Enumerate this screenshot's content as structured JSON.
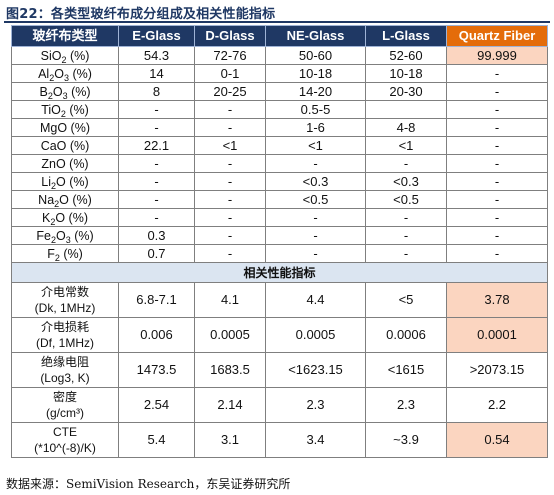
{
  "title": "图22：各类型玻纤布成分组成及相关性能指标",
  "header": [
    "玻纤布类型",
    "E-Glass",
    "D-Glass",
    "NE-Glass",
    "L-Glass",
    "Quartz Fiber"
  ],
  "composition": [
    {
      "label": [
        "SiO",
        "2",
        " (%)"
      ],
      "values": [
        "54.3",
        "72-76",
        "50-60",
        "52-60",
        "99.999"
      ]
    },
    {
      "label": [
        "Al",
        "2",
        "O",
        "3",
        " (%)"
      ],
      "values": [
        "14",
        "0-1",
        "10-18",
        "10-18",
        "-"
      ]
    },
    {
      "label": [
        "B",
        "2",
        "O",
        "3",
        " (%)"
      ],
      "values": [
        "8",
        "20-25",
        "14-20",
        "20-30",
        "-"
      ]
    },
    {
      "label": [
        "TiO",
        "2",
        " (%)"
      ],
      "values": [
        "-",
        "-",
        "0.5-5",
        "",
        "-"
      ]
    },
    {
      "label": [
        "MgO (%)"
      ],
      "values": [
        "-",
        "-",
        "1-6",
        "4-8",
        "-"
      ]
    },
    {
      "label": [
        "CaO (%)"
      ],
      "values": [
        "22.1",
        "<1",
        "<1",
        "<1",
        "-"
      ]
    },
    {
      "label": [
        "ZnO (%)"
      ],
      "values": [
        "-",
        "-",
        "-",
        "-",
        "-"
      ]
    },
    {
      "label": [
        "Li",
        "2",
        "O (%)"
      ],
      "values": [
        "-",
        "-",
        "<0.3",
        "<0.3",
        "-"
      ]
    },
    {
      "label": [
        "Na",
        "2",
        "O (%)"
      ],
      "values": [
        "-",
        "-",
        "<0.5",
        "<0.5",
        "-"
      ]
    },
    {
      "label": [
        "K",
        "2",
        "O (%)"
      ],
      "values": [
        "-",
        "-",
        "-",
        "-",
        "-"
      ]
    },
    {
      "label": [
        "Fe",
        "2",
        "O",
        "3",
        " (%)"
      ],
      "values": [
        "0.3",
        "-",
        "-",
        "-",
        "-"
      ]
    },
    {
      "label": [
        "F",
        "2",
        " (%)"
      ],
      "values": [
        "0.7",
        "-",
        "-",
        "-",
        "-"
      ]
    }
  ],
  "section_label": "相关性能指标",
  "performance": [
    {
      "label1": "介电常数",
      "label2": "(Dk, 1MHz)",
      "values": [
        "6.8-7.1",
        "4.1",
        "4.4",
        "<5",
        "3.78"
      ],
      "highlight": true
    },
    {
      "label1": "介电损耗",
      "label2": "(Df, 1MHz)",
      "values": [
        "0.006",
        "0.0005",
        "0.0005",
        "0.0006",
        "0.0001"
      ],
      "highlight": true
    },
    {
      "label1": "绝缘电阻",
      "label2": "(Log3, K)",
      "values": [
        "1473.5",
        "1683.5",
        "<1623.15",
        "<1615",
        ">2073.15"
      ],
      "highlight": false
    },
    {
      "label1": "密度",
      "label2": "(g/cm³)",
      "values": [
        "2.54",
        "2.14",
        "2.3",
        "2.3",
        "2.2"
      ],
      "highlight": false
    },
    {
      "label1": "CTE",
      "label2": "(*10^(-8)/K)",
      "values": [
        "5.4",
        "3.1",
        "3.4",
        "~3.9",
        "0.54"
      ],
      "highlight": true
    }
  ],
  "source": "数据来源：SemiVision Research，东吴证券研究所",
  "colors": {
    "header_bg": "#1f3864",
    "quartz_header_bg": "#e46c0a",
    "highlight_bg": "#fbd5c0",
    "section_bg": "#dbe5f1"
  }
}
